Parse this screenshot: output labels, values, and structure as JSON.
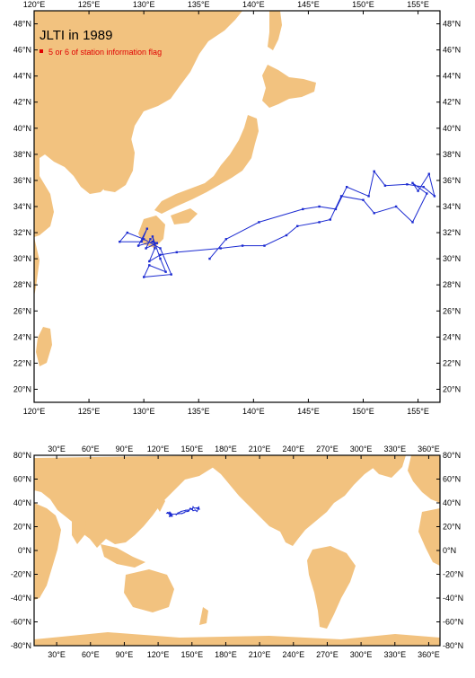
{
  "regional_map": {
    "title": "JLTI in 1989",
    "legend": {
      "label": "5 or 6 of station information flag",
      "color": "#e00000"
    },
    "lon_ticks": [
      "120°E",
      "125°E",
      "130°E",
      "135°E",
      "140°E",
      "145°E",
      "150°E",
      "155°E"
    ],
    "lon_values": [
      120,
      125,
      130,
      135,
      140,
      145,
      150,
      155
    ],
    "lat_ticks": [
      "20°N",
      "22°N",
      "24°N",
      "26°N",
      "28°N",
      "30°N",
      "32°N",
      "34°N",
      "36°N",
      "38°N",
      "40°N",
      "42°N",
      "44°N",
      "46°N",
      "48°N"
    ],
    "lat_values": [
      20,
      22,
      24,
      26,
      28,
      30,
      32,
      34,
      36,
      38,
      40,
      42,
      44,
      46,
      48
    ],
    "lon_range": [
      120,
      157
    ],
    "lat_range": [
      19,
      49
    ]
  },
  "global_map": {
    "lon_ticks": [
      "30°E",
      "60°E",
      "90°E",
      "120°E",
      "150°E",
      "180°E",
      "210°E",
      "240°E",
      "270°E",
      "300°E",
      "330°E",
      "360°E"
    ],
    "lon_values": [
      30,
      60,
      90,
      120,
      150,
      180,
      210,
      240,
      270,
      300,
      330,
      360
    ],
    "lat_ticks": [
      "80°N",
      "60°N",
      "40°N",
      "20°N",
      "0°N",
      "-20°N",
      "-40°N",
      "-60°N",
      "-80°N"
    ],
    "lat_values": [
      80,
      60,
      40,
      20,
      0,
      -20,
      -40,
      -60,
      -80
    ],
    "lon_range": [
      10,
      370
    ],
    "lat_range": [
      -80,
      80
    ]
  },
  "colors": {
    "land": "#f2c27f",
    "track": "#1c2bd1",
    "frame": "#000000"
  },
  "track_points": [
    [
      136.0,
      30.0
    ],
    [
      137.5,
      31.5
    ],
    [
      140.5,
      32.8
    ],
    [
      144.5,
      33.8
    ],
    [
      146.0,
      34.0
    ],
    [
      147.5,
      33.8
    ],
    [
      148.5,
      35.5
    ],
    [
      150.5,
      34.8
    ],
    [
      151.0,
      36.7
    ],
    [
      152.0,
      35.6
    ],
    [
      154.0,
      35.7
    ],
    [
      155.5,
      35.5
    ],
    [
      156.5,
      34.8
    ],
    [
      156.0,
      36.5
    ],
    [
      155.0,
      35.2
    ],
    [
      154.5,
      35.8
    ],
    [
      155.8,
      35.0
    ],
    [
      154.5,
      32.8
    ],
    [
      153.0,
      34.0
    ],
    [
      151.0,
      33.5
    ],
    [
      150.0,
      34.5
    ],
    [
      148.0,
      34.8
    ],
    [
      147.0,
      33.0
    ],
    [
      146.0,
      32.8
    ],
    [
      144.0,
      32.5
    ],
    [
      143.0,
      31.8
    ],
    [
      141.0,
      31.0
    ],
    [
      139.0,
      31.0
    ],
    [
      137.0,
      30.8
    ],
    [
      133.0,
      30.5
    ],
    [
      131.5,
      30.3
    ],
    [
      130.5,
      29.8
    ],
    [
      131.0,
      30.8
    ],
    [
      130.8,
      31.7
    ],
    [
      131.5,
      30.0
    ],
    [
      132.0,
      29.0
    ],
    [
      130.5,
      29.5
    ],
    [
      130.0,
      28.6
    ],
    [
      132.5,
      28.8
    ],
    [
      131.5,
      30.8
    ],
    [
      130.0,
      31.5
    ],
    [
      128.5,
      32.0
    ],
    [
      127.8,
      31.3
    ],
    [
      129.8,
      31.3
    ],
    [
      130.3,
      32.3
    ],
    [
      129.5,
      31.0
    ],
    [
      130.8,
      31.3
    ],
    [
      131.2,
      31.2
    ],
    [
      130.2,
      30.8
    ],
    [
      130.6,
      31.5
    ]
  ]
}
